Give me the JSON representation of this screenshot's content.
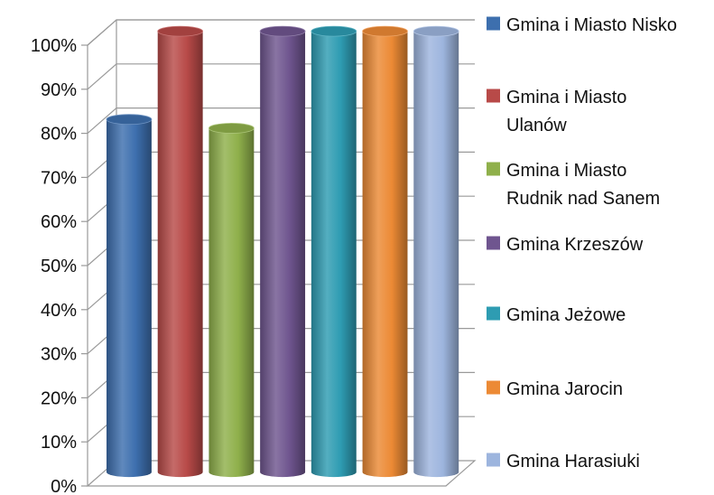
{
  "chart_data": {
    "type": "bar",
    "style": "3d-cylinder",
    "title": "",
    "xlabel": "",
    "ylabel": "",
    "ylim": [
      0,
      100
    ],
    "y_ticks": [
      "0%",
      "10%",
      "20%",
      "30%",
      "40%",
      "50%",
      "60%",
      "70%",
      "80%",
      "90%",
      "100%"
    ],
    "grid": true,
    "legend_position": "right",
    "series": [
      {
        "name": "Gmina i Miasto Nisko",
        "label_lines": [
          "Gmina i Miasto Nisko"
        ],
        "value": 80,
        "color": "#3D6FAE"
      },
      {
        "name": "Gmina i Miasto Ulanów",
        "label_lines": [
          "Gmina i Miasto",
          "Ulanów"
        ],
        "value": 100,
        "color": "#B84A48"
      },
      {
        "name": "Gmina i Miasto Rudnik nad Sanem",
        "label_lines": [
          "Gmina i Miasto",
          "Rudnik nad Sanem"
        ],
        "value": 78,
        "color": "#8FB04B"
      },
      {
        "name": "Gmina Krzeszów",
        "label_lines": [
          "Gmina Krzeszów"
        ],
        "value": 100,
        "color": "#6F558F"
      },
      {
        "name": "Gmina Jeżowe",
        "label_lines": [
          "Gmina Jeżowe"
        ],
        "value": 100,
        "color": "#2E9CB2"
      },
      {
        "name": "Gmina Jarocin",
        "label_lines": [
          "Gmina Jarocin"
        ],
        "value": 100,
        "color": "#EC8A35"
      },
      {
        "name": "Gmina Harasiuki",
        "label_lines": [
          "Gmina Harasiuki"
        ],
        "value": 100,
        "color": "#9DB5DE"
      }
    ]
  }
}
